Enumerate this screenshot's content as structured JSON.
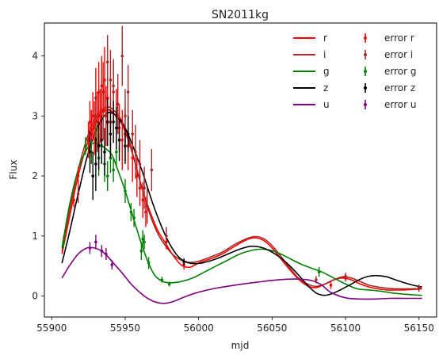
{
  "chart_data": {
    "type": "line",
    "title": "SN2011kg",
    "xlabel": "mjd",
    "ylabel": "Flux",
    "xlim": [
      55895,
      56162
    ],
    "ylim": [
      -0.35,
      4.55
    ],
    "xticks": [
      55900,
      55950,
      56000,
      56050,
      56100,
      56150
    ],
    "yticks": [
      0,
      1,
      2,
      3,
      4
    ],
    "grid": false,
    "legend": {
      "placement": "top-right",
      "columns": 2
    },
    "curves": [
      {
        "name": "r",
        "color": "#ff0000",
        "x": [
          55907,
          55912,
          55918,
          55925,
          55932,
          55938,
          55942,
          55947,
          55952,
          55957,
          55962,
          55967,
          55972,
          55977,
          55982,
          55988,
          55994,
          56000,
          56008,
          56016,
          56024,
          56032,
          56038,
          56044,
          56050,
          56056,
          56062,
          56068,
          56074,
          56080,
          56086,
          56092,
          56098,
          56104,
          56110,
          56116,
          56122,
          56128,
          56134,
          56140,
          56146,
          56152
        ],
        "y": [
          0.7,
          1.3,
          2.0,
          2.6,
          3.0,
          3.1,
          3.05,
          2.9,
          2.6,
          2.2,
          1.75,
          1.4,
          1.1,
          0.9,
          0.7,
          0.52,
          0.48,
          0.55,
          0.62,
          0.7,
          0.82,
          0.93,
          0.97,
          0.93,
          0.8,
          0.62,
          0.44,
          0.28,
          0.17,
          0.14,
          0.2,
          0.27,
          0.3,
          0.27,
          0.2,
          0.15,
          0.12,
          0.1,
          0.1,
          0.1,
          0.11,
          0.12
        ]
      },
      {
        "name": "i",
        "color": "#a52a2a",
        "x": [
          55907,
          55912,
          55918,
          55925,
          55932,
          55938,
          55942,
          55947,
          55952,
          55957,
          55962,
          55967,
          55972,
          55977,
          55982,
          55988,
          55994,
          56000,
          56008,
          56016,
          56024,
          56032,
          56038,
          56044,
          56050,
          56056,
          56062,
          56068,
          56074,
          56080,
          56086,
          56092,
          56098,
          56104,
          56110,
          56116,
          56122,
          56128,
          56134,
          56140,
          56146,
          56152
        ],
        "y": [
          0.75,
          1.4,
          2.1,
          2.7,
          3.05,
          3.15,
          3.1,
          2.95,
          2.65,
          2.2,
          1.75,
          1.35,
          1.05,
          0.85,
          0.7,
          0.6,
          0.56,
          0.58,
          0.65,
          0.73,
          0.85,
          0.95,
          0.99,
          0.96,
          0.84,
          0.66,
          0.47,
          0.3,
          0.2,
          0.16,
          0.2,
          0.27,
          0.32,
          0.3,
          0.24,
          0.18,
          0.15,
          0.13,
          0.12,
          0.12,
          0.12,
          0.13
        ]
      },
      {
        "name": "g",
        "color": "#008000",
        "x": [
          55907,
          55912,
          55918,
          55924,
          55929,
          55933,
          55937,
          55941,
          55945,
          55950,
          55955,
          55960,
          55965,
          55970,
          55975,
          55980,
          55988,
          55996,
          56004,
          56012,
          56020,
          56028,
          56036,
          56044,
          56052,
          56060,
          56068,
          56076,
          56084,
          56092,
          56100,
          56108,
          56116,
          56124,
          56132,
          56140,
          56146,
          56152
        ],
        "y": [
          0.8,
          1.5,
          2.1,
          2.45,
          2.55,
          2.52,
          2.45,
          2.35,
          2.1,
          1.75,
          1.35,
          0.95,
          0.6,
          0.35,
          0.25,
          0.22,
          0.24,
          0.3,
          0.4,
          0.5,
          0.6,
          0.7,
          0.76,
          0.78,
          0.74,
          0.65,
          0.55,
          0.47,
          0.4,
          0.3,
          0.2,
          0.12,
          0.1,
          0.08,
          0.05,
          0.03,
          0.02,
          0.01
        ]
      },
      {
        "name": "z",
        "color": "#000000",
        "x": [
          55907,
          55912,
          55918,
          55925,
          55932,
          55938,
          55944,
          55950,
          55956,
          55962,
          55968,
          55974,
          55980,
          55986,
          55992,
          55998,
          56004,
          56012,
          56020,
          56028,
          56036,
          56044,
          56052,
          56060,
          56068,
          56074,
          56080,
          56086,
          56092,
          56098,
          56104,
          56110,
          56116,
          56122,
          56128,
          56134,
          56140,
          56146,
          56152
        ],
        "y": [
          0.55,
          1.05,
          1.7,
          2.4,
          2.85,
          3.05,
          3.0,
          2.8,
          2.45,
          2.05,
          1.6,
          1.2,
          0.88,
          0.66,
          0.56,
          0.54,
          0.56,
          0.62,
          0.7,
          0.78,
          0.83,
          0.8,
          0.7,
          0.55,
          0.35,
          0.18,
          0.05,
          0.01,
          0.05,
          0.12,
          0.2,
          0.28,
          0.33,
          0.34,
          0.32,
          0.27,
          0.22,
          0.18,
          0.15
        ]
      },
      {
        "name": "u",
        "color": "#800080",
        "x": [
          55907,
          55912,
          55918,
          55924,
          55929,
          55934,
          55938,
          55942,
          55948,
          55954,
          55960,
          55966,
          55972,
          55978,
          55984,
          55990,
          55998,
          56006,
          56014,
          56022,
          56030,
          56040,
          56050,
          56060,
          56070,
          56078,
          56084,
          56090,
          56100,
          56110,
          56120,
          56130,
          56140,
          56152
        ],
        "y": [
          0.3,
          0.5,
          0.7,
          0.8,
          0.8,
          0.75,
          0.66,
          0.55,
          0.38,
          0.2,
          0.06,
          -0.05,
          -0.11,
          -0.12,
          -0.08,
          -0.02,
          0.05,
          0.1,
          0.14,
          0.17,
          0.2,
          0.23,
          0.26,
          0.28,
          0.28,
          0.25,
          0.18,
          0.06,
          -0.03,
          -0.05,
          -0.05,
          -0.04,
          -0.04,
          -0.04
        ]
      }
    ],
    "errorbars": [
      {
        "name": "error r",
        "color": "#ff0000",
        "points": [
          [
            55915,
            1.6,
            0.12
          ],
          [
            55918,
            2.0,
            0.15
          ],
          [
            55925,
            2.6,
            0.3
          ],
          [
            55926,
            2.9,
            0.35
          ],
          [
            55927,
            2.7,
            0.4
          ],
          [
            55928,
            3.0,
            0.4
          ],
          [
            55929,
            2.8,
            0.45
          ],
          [
            55930,
            3.3,
            0.5
          ],
          [
            55931,
            2.9,
            0.5
          ],
          [
            55932,
            3.4,
            0.5
          ],
          [
            55933,
            3.0,
            0.45
          ],
          [
            55934,
            3.5,
            0.5
          ],
          [
            55935,
            3.1,
            0.5
          ],
          [
            55936,
            3.6,
            0.55
          ],
          [
            55937,
            3.0,
            0.5
          ],
          [
            55938,
            3.3,
            0.45
          ],
          [
            55940,
            2.9,
            0.4
          ],
          [
            55942,
            3.4,
            0.5
          ],
          [
            55944,
            3.0,
            0.45
          ],
          [
            55946,
            2.8,
            0.4
          ],
          [
            55948,
            2.6,
            0.5
          ],
          [
            55950,
            2.7,
            0.45
          ],
          [
            55952,
            2.5,
            0.4
          ],
          [
            55955,
            2.3,
            0.4
          ],
          [
            55958,
            2.0,
            0.35
          ],
          [
            55960,
            1.8,
            0.3
          ],
          [
            55962,
            1.6,
            0.3
          ],
          [
            55964,
            1.4,
            0.25
          ],
          [
            55978,
            0.9,
            0.12
          ],
          [
            55990,
            0.52,
            0.08
          ],
          [
            56090,
            0.18,
            0.06
          ],
          [
            56100,
            0.3,
            0.06
          ],
          [
            56150,
            0.12,
            0.05
          ]
        ]
      },
      {
        "name": "error i",
        "color": "#a52a2a",
        "points": [
          [
            55918,
            1.7,
            0.15
          ],
          [
            55930,
            3.0,
            0.4
          ],
          [
            55935,
            3.4,
            0.5
          ],
          [
            55938,
            3.9,
            0.45
          ],
          [
            55940,
            3.6,
            0.5
          ],
          [
            55942,
            3.5,
            0.45
          ],
          [
            55945,
            3.2,
            0.5
          ],
          [
            55948,
            4.0,
            0.5
          ],
          [
            55950,
            3.0,
            0.45
          ],
          [
            55952,
            3.4,
            0.45
          ],
          [
            55955,
            2.7,
            0.4
          ],
          [
            55957,
            2.4,
            0.45
          ],
          [
            55960,
            2.2,
            0.4
          ],
          [
            55963,
            1.8,
            0.35
          ],
          [
            55965,
            1.5,
            0.3
          ],
          [
            55968,
            2.1,
            0.35
          ],
          [
            55978,
            1.0,
            0.15
          ],
          [
            56080,
            0.27,
            0.06
          ],
          [
            56100,
            0.33,
            0.06
          ],
          [
            56150,
            0.14,
            0.05
          ]
        ]
      },
      {
        "name": "error g",
        "color": "#008000",
        "points": [
          [
            55908,
            0.9,
            0.1
          ],
          [
            55923,
            2.5,
            0.15
          ],
          [
            55927,
            2.4,
            0.2
          ],
          [
            55930,
            2.6,
            0.25
          ],
          [
            55932,
            2.3,
            0.3
          ],
          [
            55934,
            2.5,
            0.3
          ],
          [
            55936,
            2.2,
            0.3
          ],
          [
            55938,
            2.0,
            0.25
          ],
          [
            55940,
            2.3,
            0.25
          ],
          [
            55942,
            2.1,
            0.2
          ],
          [
            55944,
            2.4,
            0.25
          ],
          [
            55950,
            1.75,
            0.2
          ],
          [
            55954,
            1.4,
            0.15
          ],
          [
            55956,
            1.3,
            0.15
          ],
          [
            55961,
            0.75,
            0.15
          ],
          [
            55962,
            0.95,
            0.15
          ],
          [
            55963,
            0.9,
            0.12
          ],
          [
            55966,
            0.55,
            0.1
          ],
          [
            55975,
            0.27,
            0.05
          ],
          [
            55980,
            0.2,
            0.04
          ],
          [
            56082,
            0.4,
            0.08
          ]
        ]
      },
      {
        "name": "error z",
        "color": "#000000",
        "points": [
          [
            55926,
            2.4,
            0.35
          ],
          [
            55928,
            2.0,
            0.4
          ],
          [
            55930,
            2.2,
            0.45
          ],
          [
            55932,
            2.5,
            0.4
          ],
          [
            55934,
            2.6,
            0.4
          ],
          [
            55936,
            2.4,
            0.4
          ],
          [
            55938,
            2.9,
            0.4
          ],
          [
            55940,
            2.7,
            0.4
          ],
          [
            55942,
            2.9,
            0.35
          ],
          [
            55944,
            2.8,
            0.35
          ],
          [
            55946,
            2.6,
            0.35
          ],
          [
            55950,
            2.5,
            0.3
          ],
          [
            55952,
            2.7,
            0.3
          ],
          [
            55990,
            0.57,
            0.06
          ]
        ]
      },
      {
        "name": "error u",
        "color": "#800080",
        "points": [
          [
            55926,
            0.8,
            0.1
          ],
          [
            55930,
            0.9,
            0.12
          ],
          [
            55934,
            0.75,
            0.1
          ],
          [
            55937,
            0.7,
            0.1
          ],
          [
            55941,
            0.52,
            0.08
          ]
        ]
      }
    ]
  }
}
